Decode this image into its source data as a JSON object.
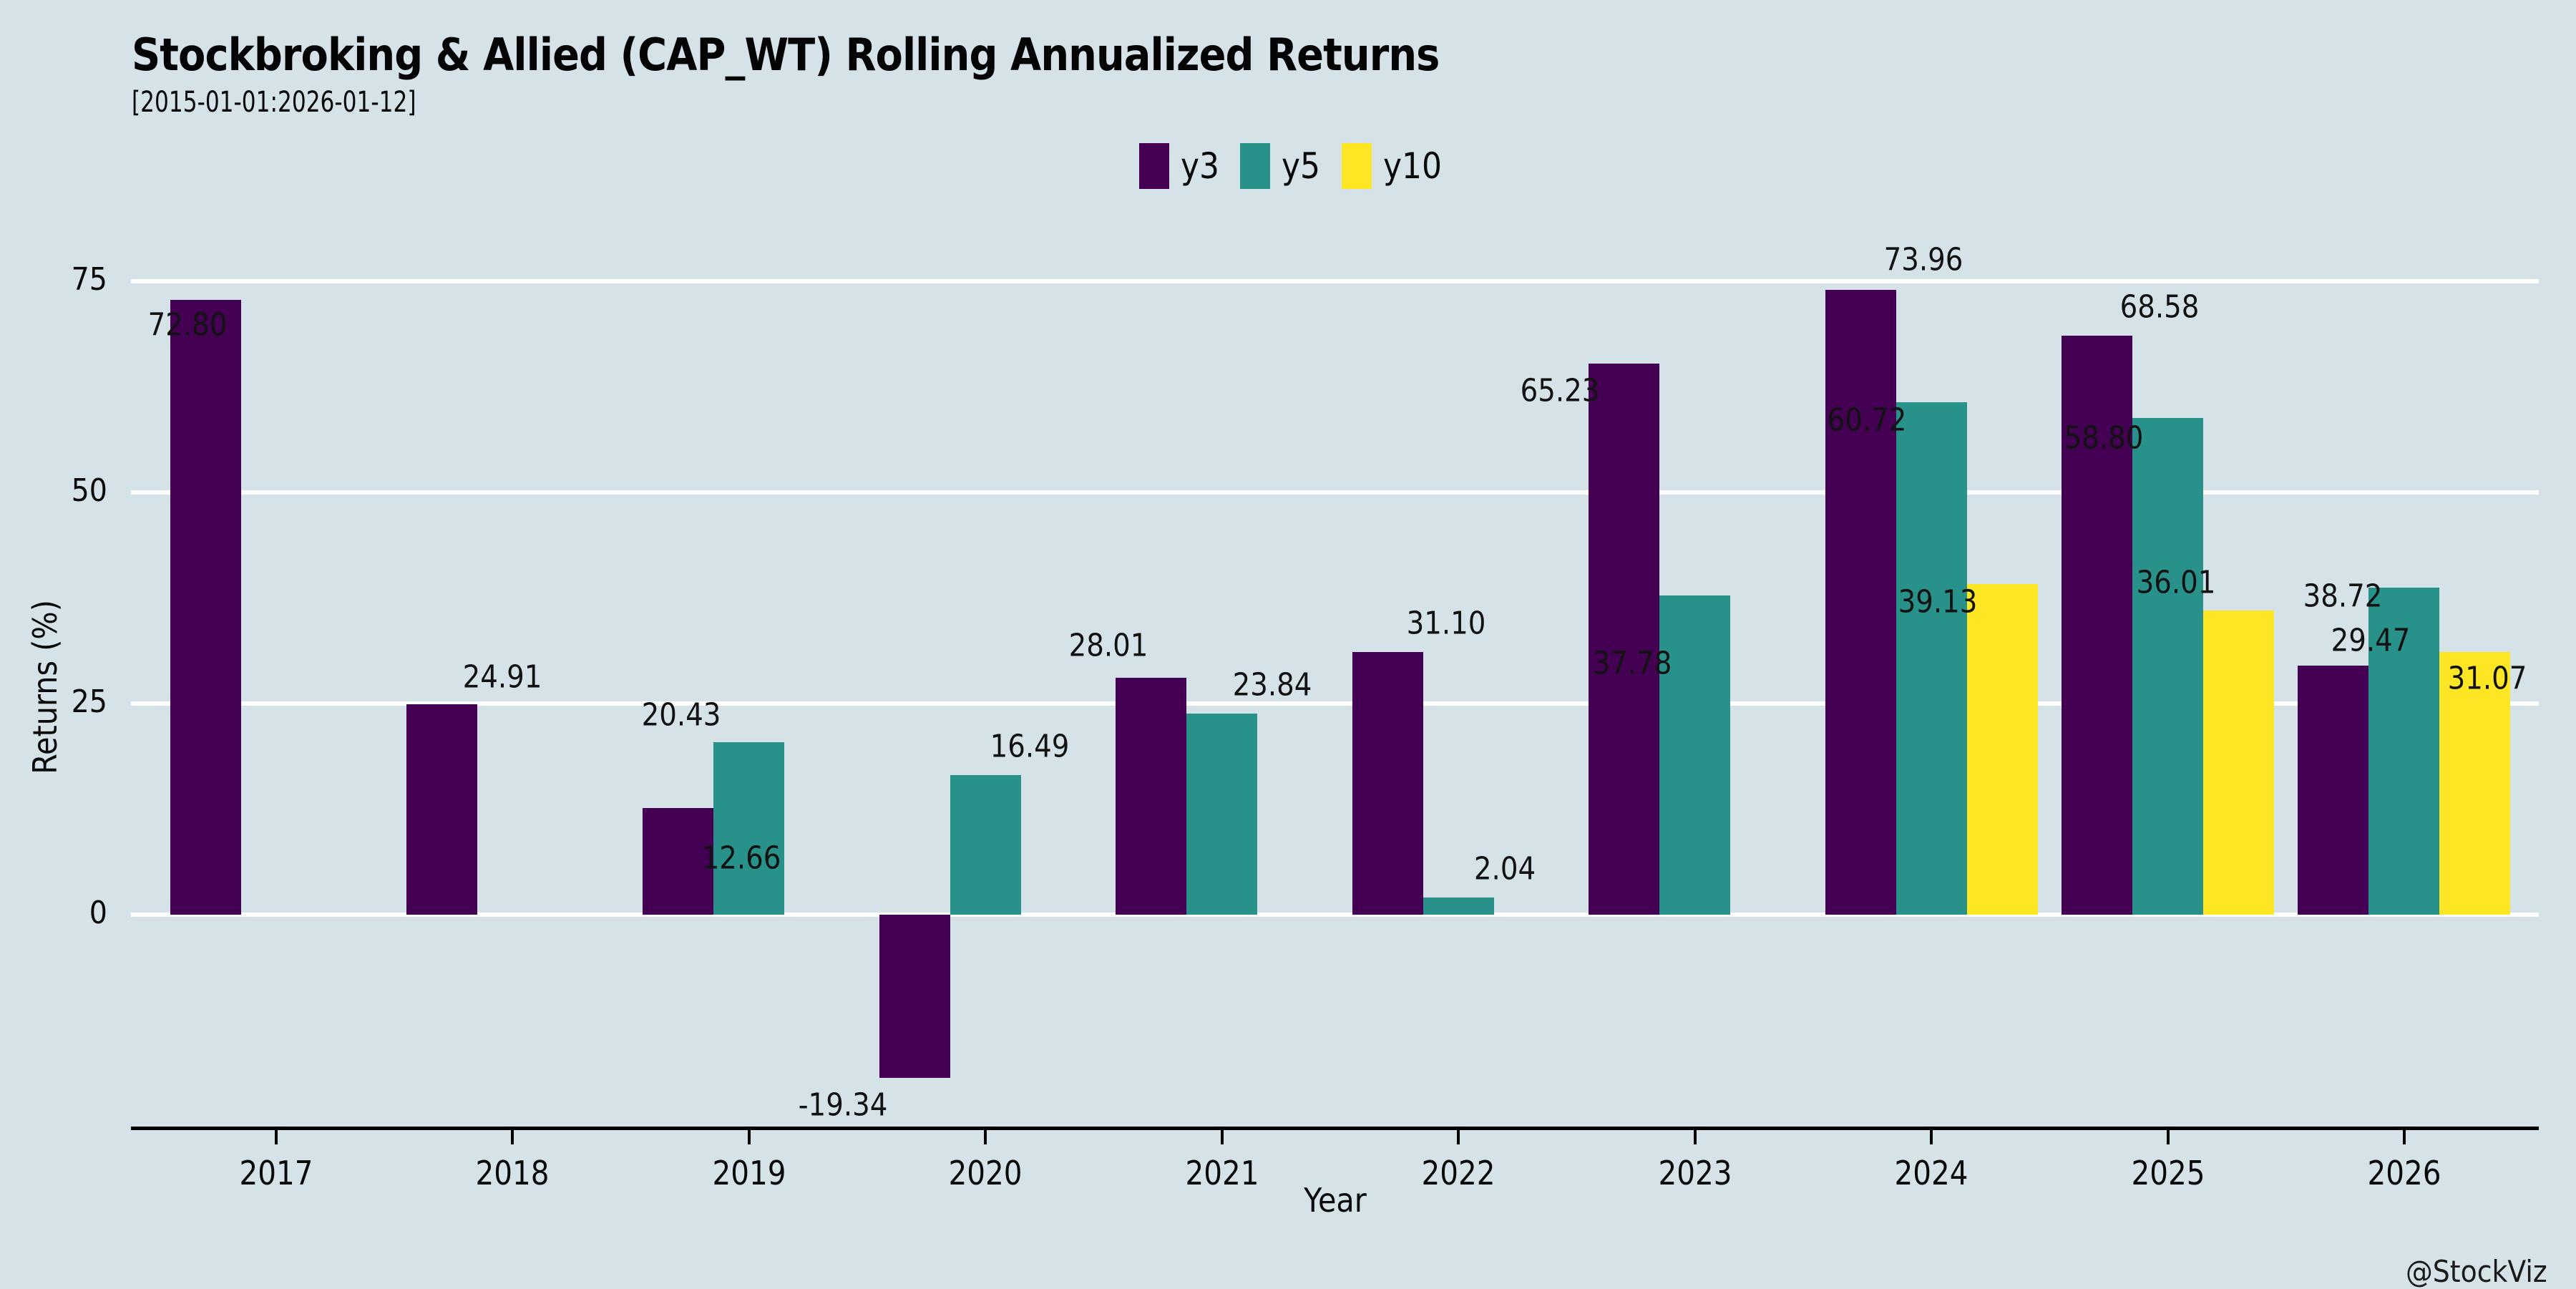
{
  "header": {
    "title": "Stockbroking & Allied (CAP_WT) Rolling Annualized Returns",
    "subtitle": "[2015-01-01:2026-01-12]"
  },
  "footer": {
    "credit": "@StockViz"
  },
  "chart_data": {
    "type": "bar",
    "title": "Stockbroking & Allied (CAP_WT) Rolling Annualized Returns",
    "subtitle": "[2015-01-01:2026-01-12]",
    "xlabel": "Year",
    "ylabel": "Returns (%)",
    "categories": [
      "2017",
      "2018",
      "2019",
      "2020",
      "2021",
      "2022",
      "2023",
      "2024",
      "2025",
      "2026"
    ],
    "series": [
      {
        "name": "y3",
        "color": "#440154",
        "values": [
          72.8,
          24.91,
          12.66,
          -19.34,
          28.01,
          31.1,
          65.23,
          73.96,
          68.58,
          29.47
        ],
        "label_offsets": [
          [
            -25,
            35
          ],
          [
            85,
            -38
          ],
          [
            88,
            70
          ],
          [
            -100,
            38
          ],
          [
            -60,
            -45
          ],
          [
            82,
            -40
          ],
          [
            -90,
            38
          ],
          [
            88,
            -42
          ],
          [
            87,
            -40
          ],
          [
            52,
            -35
          ]
        ]
      },
      {
        "name": "y5",
        "color": "#27918a",
        "values": [
          null,
          null,
          20.43,
          16.49,
          23.84,
          2.04,
          37.78,
          60.72,
          58.8,
          38.72
        ],
        "label_offsets": [
          null,
          null,
          [
            -95,
            -38
          ],
          [
            62,
            -40
          ],
          [
            70,
            -40
          ],
          [
            65,
            -40
          ],
          [
            -88,
            95
          ],
          [
            -90,
            25
          ],
          [
            -90,
            28
          ],
          [
            -86,
            12
          ]
        ]
      },
      {
        "name": "y10",
        "color": "#fde725",
        "values": [
          null,
          null,
          null,
          null,
          null,
          null,
          null,
          39.13,
          36.01,
          31.07
        ],
        "label_offsets": [
          null,
          null,
          null,
          null,
          null,
          null,
          null,
          [
            -90,
            25
          ],
          [
            -88,
            -39
          ],
          [
            17,
            37
          ]
        ]
      }
    ],
    "yticks": [
      0,
      25,
      50,
      75
    ],
    "ylim": [
      -25.1,
      80
    ],
    "legend_position": "top-center",
    "grid": "horizontal-white",
    "background_color": "#d5e2e8",
    "gridline_color": "#ffffff",
    "value_label_decimals": 2
  }
}
